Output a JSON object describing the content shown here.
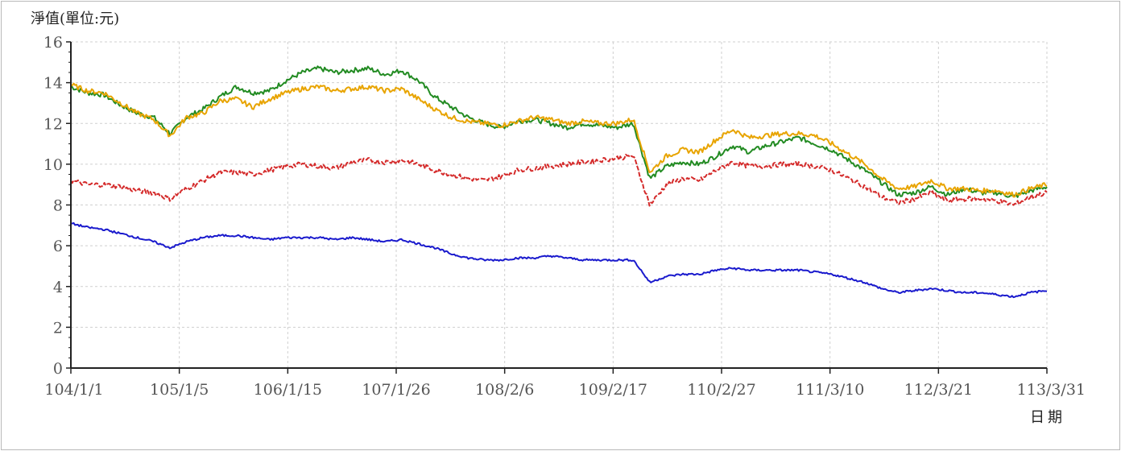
{
  "chart_data": {
    "type": "line",
    "title": "",
    "ylabel": "淨值(單位:元)",
    "xlabel": "日期",
    "ylim": [
      0,
      16
    ],
    "yticks": [
      0,
      2,
      4,
      6,
      8,
      10,
      12,
      14,
      16
    ],
    "x_tick_labels": [
      "104/1/1",
      "105/1/5",
      "106/1/15",
      "107/1/26",
      "108/2/6",
      "109/2/17",
      "110/2/27",
      "111/3/10",
      "112/3/21",
      "113/3/31"
    ],
    "grid": true,
    "legend": "none",
    "series": [
      {
        "color": "#228b22",
        "style": "solid",
        "values": [
          13.8,
          13.5,
          13.4,
          12.9,
          12.5,
          12.3,
          11.5,
          12.3,
          12.7,
          13.3,
          13.8,
          13.5,
          13.6,
          14.1,
          14.5,
          14.7,
          14.5,
          14.6,
          14.7,
          14.4,
          14.6,
          14.1,
          13.3,
          12.8,
          12.3,
          12.0,
          11.8,
          12.1,
          12.2,
          12.0,
          11.8,
          12.0,
          11.9,
          11.8,
          12.0,
          9.3,
          9.9,
          10.1,
          10.0,
          10.4,
          10.9,
          10.6,
          10.9,
          11.1,
          11.3,
          11.0,
          10.7,
          10.2,
          9.7,
          9.1,
          8.5,
          8.6,
          8.9,
          8.5,
          8.8,
          8.6,
          8.6,
          8.4,
          8.7,
          8.9
        ]
      },
      {
        "color": "#e8a400",
        "style": "solid",
        "values": [
          13.9,
          13.6,
          13.5,
          13.0,
          12.5,
          12.2,
          11.4,
          12.3,
          12.5,
          13.1,
          13.2,
          12.8,
          13.2,
          13.5,
          13.7,
          13.8,
          13.6,
          13.7,
          13.8,
          13.6,
          13.7,
          13.2,
          12.7,
          12.3,
          12.1,
          12.0,
          11.9,
          12.1,
          12.3,
          12.2,
          12.0,
          12.1,
          12.0,
          12.0,
          12.2,
          9.6,
          10.4,
          10.7,
          10.6,
          11.2,
          11.7,
          11.3,
          11.4,
          11.5,
          11.5,
          11.4,
          11.0,
          10.5,
          10.0,
          9.3,
          8.8,
          8.9,
          9.2,
          8.8,
          8.8,
          8.7,
          8.7,
          8.5,
          8.8,
          9.0
        ]
      },
      {
        "color": "#d42a2a",
        "style": "dashed",
        "values": [
          9.2,
          9.0,
          9.0,
          8.9,
          8.7,
          8.6,
          8.3,
          8.8,
          9.2,
          9.6,
          9.6,
          9.5,
          9.7,
          9.9,
          10.0,
          9.9,
          9.8,
          10.1,
          10.2,
          10.1,
          10.2,
          10.0,
          9.7,
          9.5,
          9.3,
          9.2,
          9.4,
          9.7,
          9.8,
          9.9,
          10.0,
          10.1,
          10.2,
          10.3,
          10.4,
          8.0,
          9.0,
          9.3,
          9.2,
          9.7,
          10.1,
          9.9,
          9.9,
          10.0,
          10.0,
          9.9,
          9.7,
          9.3,
          8.9,
          8.4,
          8.1,
          8.3,
          8.6,
          8.2,
          8.3,
          8.3,
          8.2,
          8.0,
          8.4,
          8.6
        ]
      },
      {
        "color": "#1a1acd",
        "style": "solid",
        "values": [
          7.1,
          6.9,
          6.8,
          6.6,
          6.4,
          6.2,
          5.9,
          6.2,
          6.4,
          6.5,
          6.5,
          6.4,
          6.3,
          6.4,
          6.4,
          6.4,
          6.3,
          6.4,
          6.3,
          6.2,
          6.3,
          6.1,
          5.9,
          5.6,
          5.4,
          5.3,
          5.3,
          5.4,
          5.4,
          5.5,
          5.4,
          5.3,
          5.3,
          5.3,
          5.3,
          4.2,
          4.5,
          4.6,
          4.6,
          4.8,
          4.9,
          4.8,
          4.8,
          4.8,
          4.8,
          4.7,
          4.6,
          4.4,
          4.2,
          3.9,
          3.7,
          3.8,
          3.9,
          3.8,
          3.7,
          3.7,
          3.6,
          3.5,
          3.7,
          3.8
        ]
      }
    ]
  }
}
